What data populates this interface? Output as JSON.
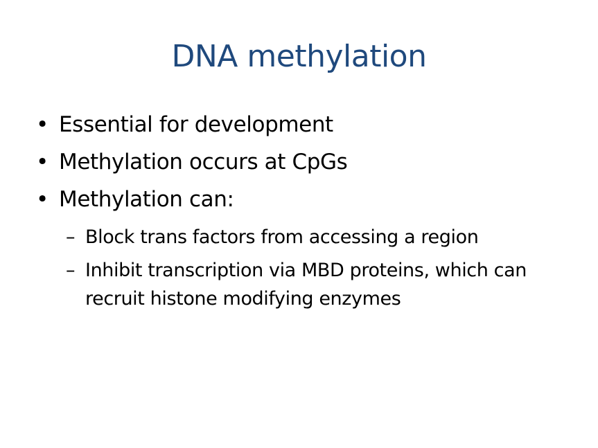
{
  "slide": {
    "title": "DNA methylation",
    "bullets": [
      {
        "marker": "•",
        "text": "Essential for development"
      },
      {
        "marker": "•",
        "text": "Methylation occurs at CpGs"
      },
      {
        "marker": "•",
        "text": "Methylation can:"
      }
    ],
    "sub_bullets": [
      {
        "marker": "–",
        "text": "Block trans factors from accessing a region"
      },
      {
        "marker": "–",
        "text": "Inhibit transcription via MBD proteins, which can recruit histone modifying enzymes"
      }
    ],
    "colors": {
      "title": "#1f497d",
      "body": "#000000",
      "background": "#ffffff"
    }
  }
}
